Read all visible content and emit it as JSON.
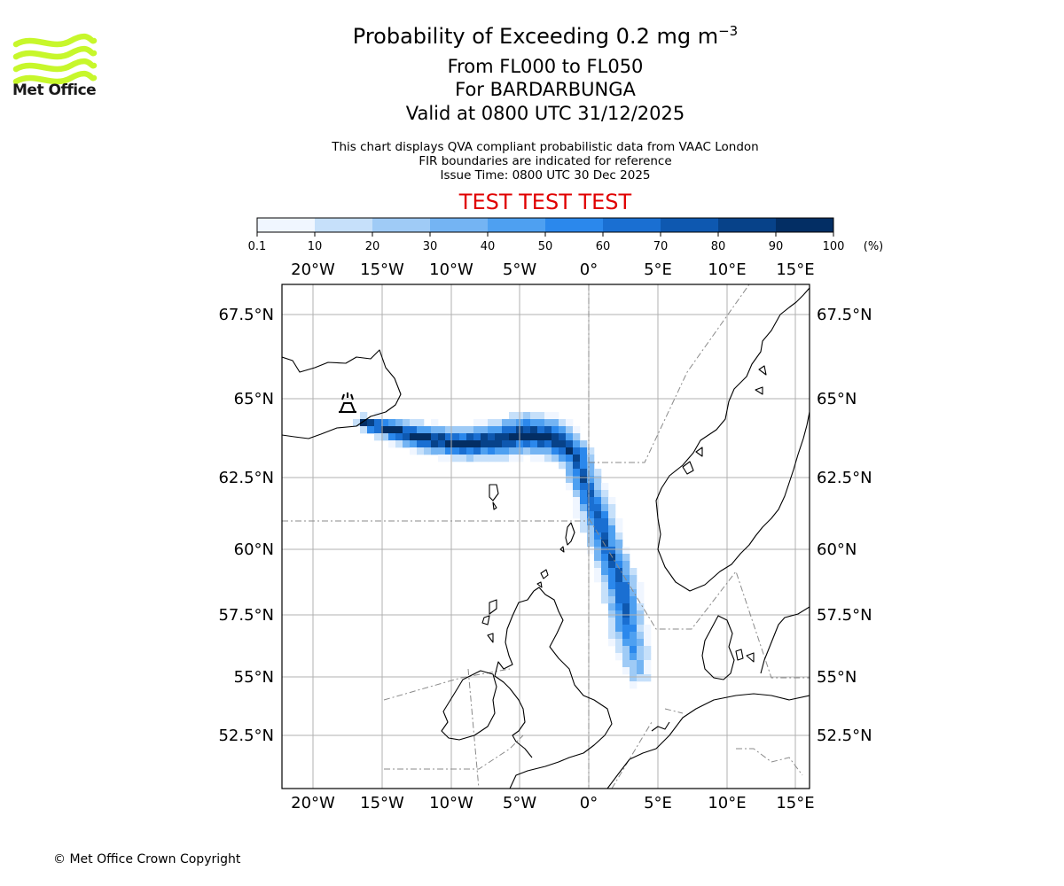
{
  "logo": {
    "text": "Met Office",
    "wave_color": "#c7f72b"
  },
  "title": {
    "line1_main": "Probability of Exceeding 0.2 mg m",
    "line1_sup": "−3",
    "line2": "From FL000 to FL050",
    "line3": "For BARDARBUNGA",
    "line4": "Valid at 0800 UTC 31/12/2025"
  },
  "notes": {
    "line1": "This chart displays QVA compliant probabilistic data from VAAC London",
    "line2": "FIR boundaries are indicated for reference",
    "line3": "Issue Time: 0800 UTC 30 Dec 2025"
  },
  "banner": {
    "text": "TEST TEST TEST",
    "color": "#e00000"
  },
  "colorbar": {
    "ticks": [
      "0.1",
      "10",
      "20",
      "30",
      "40",
      "50",
      "60",
      "70",
      "80",
      "90",
      "100"
    ],
    "unit": "(%)",
    "colors": [
      "#f0f6ff",
      "#c6e0fa",
      "#9fcbf6",
      "#74b4f3",
      "#4ea0f1",
      "#2b88ec",
      "#1a6fd2",
      "#0e58b0",
      "#074289",
      "#032e64"
    ]
  },
  "map": {
    "lon_labels": [
      "20°W",
      "15°W",
      "10°W",
      "5°W",
      "0°",
      "5°E",
      "10°E",
      "15°E"
    ],
    "lat_labels": [
      "67.5°N",
      "65°N",
      "62.5°N",
      "60°N",
      "57.5°N",
      "55°N",
      "52.5°N"
    ],
    "volcano_icon": "volcano-icon"
  },
  "footer": {
    "copyright": "© Met Office Crown Copyright"
  }
}
